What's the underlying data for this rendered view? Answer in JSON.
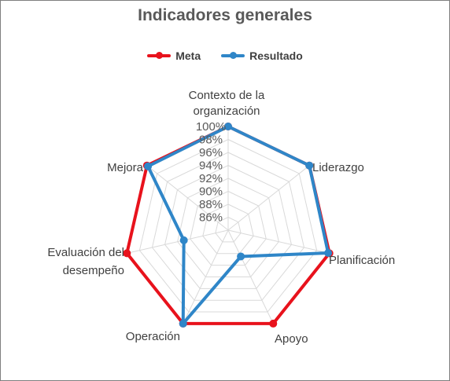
{
  "chart_data": {
    "type": "radar",
    "title": "Indicadores generales",
    "categories": [
      "Contexto de la organización",
      "Liderazgo",
      "Planificación",
      "Apoyo",
      "Operación",
      "Evaluación del desempeño",
      "Mejora"
    ],
    "series": [
      {
        "name": "Meta",
        "color": "#e8121c",
        "values": [
          100,
          100,
          100,
          100,
          100,
          100,
          100
        ]
      },
      {
        "name": "Resultado",
        "color": "#2f86c8",
        "values": [
          100,
          100,
          99.8,
          88.5,
          100,
          91,
          99.8
        ]
      }
    ],
    "radial_ticks": [
      "86%",
      "88%",
      "90%",
      "92%",
      "94%",
      "96%",
      "98%",
      "100%"
    ],
    "rlim": [
      84,
      100
    ],
    "legend_position": "top",
    "grid": true
  }
}
